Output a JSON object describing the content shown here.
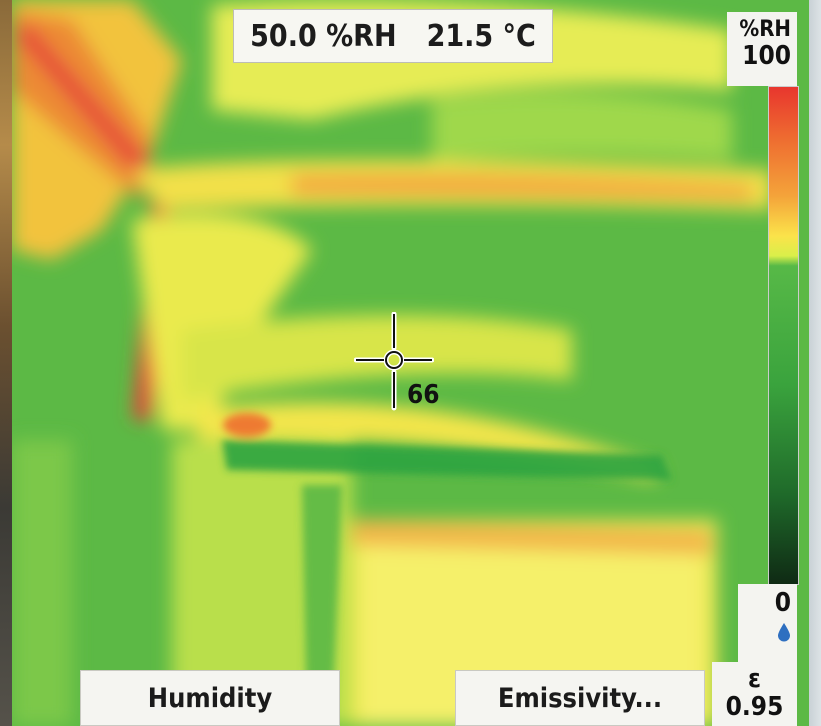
{
  "readout": {
    "humidity": "50.0 %RH",
    "temperature": "21.5 °C"
  },
  "scale": {
    "unit": "%RH",
    "max": "100",
    "min": "0",
    "min_icon": "water-drop-icon",
    "colors": [
      "#e8362e",
      "#f4a43a",
      "#fbe34a",
      "#57b947",
      "#1f6a2a",
      "#0f2a14"
    ]
  },
  "spot": {
    "value": "66",
    "icon": "crosshair-icon"
  },
  "emissivity": {
    "symbol": "ε",
    "value": "0.95"
  },
  "softkeys": {
    "left": "Humidity",
    "right": "Emissivity..."
  }
}
